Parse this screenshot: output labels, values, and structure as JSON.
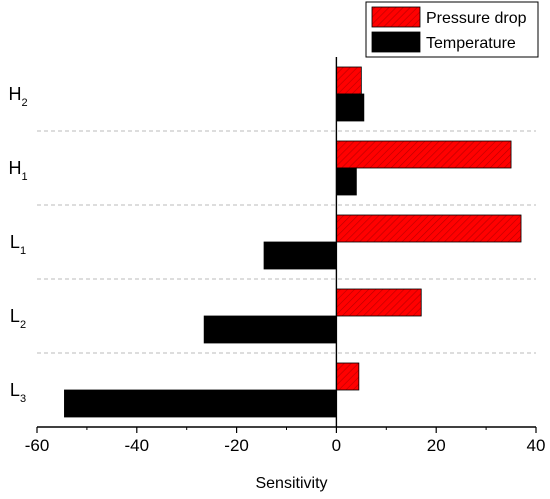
{
  "chart_data": {
    "type": "bar",
    "orientation": "horizontal",
    "categories": [
      {
        "base": "H",
        "sub": "2"
      },
      {
        "base": "H",
        "sub": "1"
      },
      {
        "base": "L",
        "sub": "1"
      },
      {
        "base": "L",
        "sub": "2"
      },
      {
        "base": "L",
        "sub": "3"
      }
    ],
    "series": [
      {
        "name": "Pressure drop",
        "color": "#ff0000",
        "values": [
          5,
          35,
          37,
          17,
          4.5
        ]
      },
      {
        "name": "Temperature",
        "color": "#000000",
        "values": [
          5.5,
          4,
          -14.5,
          -26.5,
          -54.5
        ]
      }
    ],
    "xlabel": "Sensitivity",
    "ylabel": "",
    "xlim": [
      -60,
      40
    ],
    "xticks": [
      -60,
      -40,
      -20,
      0,
      20,
      40
    ],
    "grid": "dashed horizontal separators between categories",
    "legend_position": "top-right"
  }
}
